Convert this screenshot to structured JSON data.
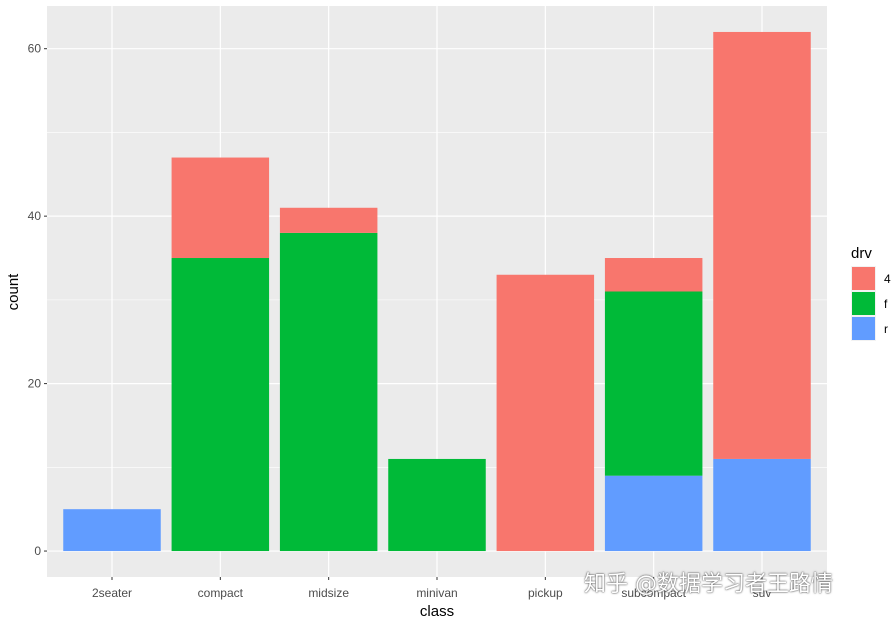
{
  "chart_data": {
    "type": "bar",
    "stacked": true,
    "categories": [
      "2seater",
      "compact",
      "midsize",
      "minivan",
      "pickup",
      "subcompact",
      "suv"
    ],
    "series": [
      {
        "name": "4",
        "color": "#F8766D",
        "values": [
          0,
          12,
          3,
          0,
          33,
          4,
          51
        ]
      },
      {
        "name": "f",
        "color": "#00BA38",
        "values": [
          0,
          35,
          38,
          11,
          0,
          22,
          0
        ]
      },
      {
        "name": "r",
        "color": "#619CFF",
        "values": [
          5,
          0,
          0,
          0,
          0,
          9,
          11
        ]
      }
    ],
    "xlabel": "class",
    "ylabel": "count",
    "ylim": [
      -3.1,
      65.1
    ],
    "yticks": [
      0,
      20,
      40,
      60
    ],
    "grid": true,
    "legend": {
      "title": "drv",
      "position": "right"
    }
  },
  "watermark": "知乎 @数据学习者王路情"
}
